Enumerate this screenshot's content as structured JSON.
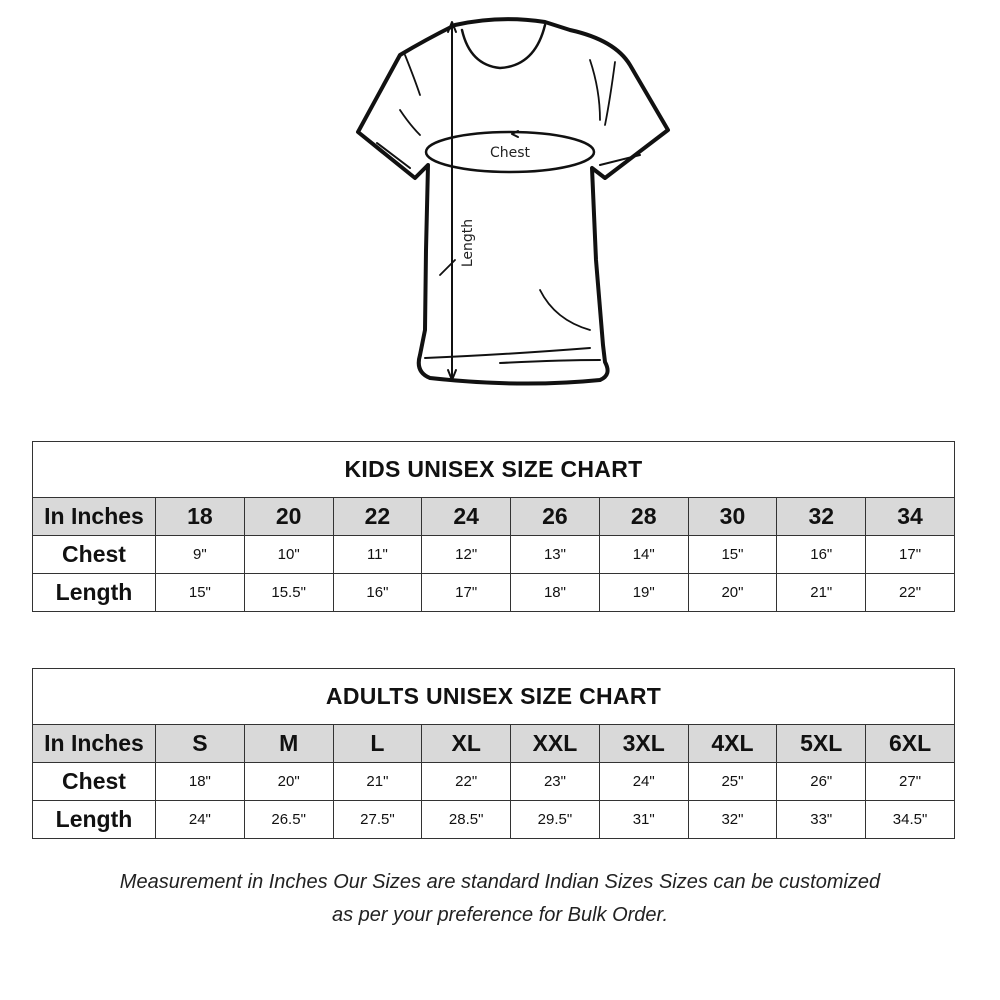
{
  "diagram": {
    "chest_label": "Chest",
    "length_label": "Length"
  },
  "kids": {
    "title": "KIDS UNISEX SIZE CHART",
    "header_label": "In Inches",
    "sizes": [
      "18",
      "20",
      "22",
      "24",
      "26",
      "28",
      "30",
      "32",
      "34"
    ],
    "rows": [
      {
        "label": "Chest",
        "values": [
          "9\"",
          "10\"",
          "11\"",
          "12\"",
          "13\"",
          "14\"",
          "15\"",
          "16\"",
          "17\""
        ]
      },
      {
        "label": "Length",
        "values": [
          "15\"",
          "15.5\"",
          "16\"",
          "17\"",
          "18\"",
          "19\"",
          "20\"",
          "21\"",
          "22\""
        ]
      }
    ]
  },
  "adults": {
    "title": "ADULTS UNISEX SIZE CHART",
    "header_label": "In Inches",
    "sizes": [
      "S",
      "M",
      "L",
      "XL",
      "XXL",
      "3XL",
      "4XL",
      "5XL",
      "6XL"
    ],
    "rows": [
      {
        "label": "Chest",
        "values": [
          "18\"",
          "20\"",
          "21\"",
          "22\"",
          "23\"",
          "24\"",
          "25\"",
          "26\"",
          "27\""
        ]
      },
      {
        "label": "Length",
        "values": [
          "24\"",
          "26.5\"",
          "27.5\"",
          "28.5\"",
          "29.5\"",
          "31\"",
          "32\"",
          "33\"",
          "34.5\""
        ]
      }
    ]
  },
  "footer": {
    "line1": "Measurement in Inches Our Sizes are standard Indian Sizes Sizes can be customized",
    "line2": "as per your preference for Bulk Order."
  }
}
